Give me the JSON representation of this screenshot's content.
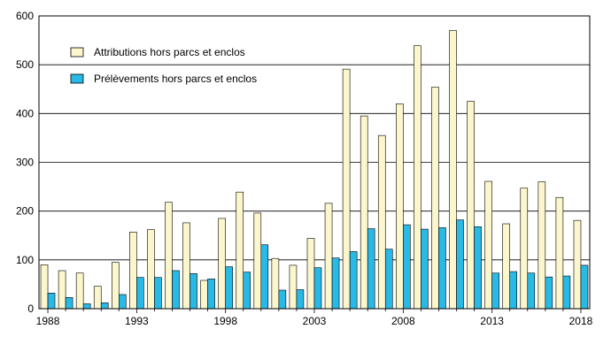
{
  "chart_data": {
    "type": "bar",
    "x": [
      1988,
      1989,
      1990,
      1991,
      1992,
      1993,
      1994,
      1995,
      1996,
      1997,
      1998,
      1999,
      2000,
      2001,
      2002,
      2003,
      2004,
      2005,
      2006,
      2007,
      2008,
      2009,
      2010,
      2011,
      2012,
      2013,
      2014,
      2015,
      2016,
      2017,
      2018
    ],
    "x_tick_labels": [
      "1988",
      "1993",
      "1998",
      "2003",
      "2008",
      "2013",
      "2018"
    ],
    "y_tick_labels": [
      "0",
      "100",
      "200",
      "300",
      "400",
      "500",
      "600"
    ],
    "ylim": [
      0,
      600
    ],
    "grid": "horizontal",
    "legend_position": "top-left",
    "series": [
      {
        "name": "Attributions hors parcs et enclos",
        "color": "#fbf6cc",
        "values": [
          90,
          78,
          73,
          46,
          95,
          157,
          162,
          218,
          176,
          58,
          185,
          239,
          196,
          103,
          89,
          144,
          216,
          491,
          395,
          355,
          420,
          539,
          454,
          570,
          425,
          261,
          174,
          247,
          260,
          228,
          181
        ]
      },
      {
        "name": "Prélèvements hors parcs et enclos",
        "color": "#29b9e6",
        "values": [
          32,
          23,
          10,
          12,
          29,
          64,
          64,
          78,
          72,
          61,
          86,
          75,
          131,
          38,
          39,
          84,
          104,
          117,
          164,
          122,
          172,
          163,
          166,
          182,
          168,
          73,
          76,
          73,
          65,
          67,
          89
        ]
      }
    ]
  }
}
